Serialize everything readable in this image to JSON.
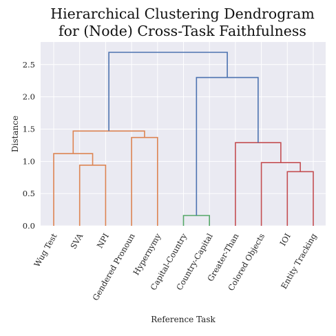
{
  "chart_data": {
    "type": "dendrogram",
    "title_lines": [
      "Hierarchical Clustering Dendrogram",
      "for (Node) Cross-Task Faithfulness"
    ],
    "xlabel": "Reference Task",
    "ylabel": "Distance",
    "ylim": [
      0,
      2.85
    ],
    "yticks": [
      "0.0",
      "0.5",
      "1.0",
      "1.5",
      "2.0",
      "2.5"
    ],
    "grid": true,
    "leaves": [
      {
        "label": "Wug Test",
        "color": "#0000ff"
      },
      {
        "label": "SVA",
        "color": "#0000ff"
      },
      {
        "label": "NPI",
        "color": "#0000ff"
      },
      {
        "label": "Gendered Pronoun",
        "color": "#0000ff"
      },
      {
        "label": "Hypernymy",
        "color": "#0000ff"
      },
      {
        "label": "Capital-Country",
        "color": "#111111"
      },
      {
        "label": "Country-Capital",
        "color": "#111111"
      },
      {
        "label": "Greater-Than",
        "color": "#111111"
      },
      {
        "label": "Colored Objects",
        "color": "#111111"
      },
      {
        "label": "IOI",
        "color": "#111111"
      },
      {
        "label": "Entity Tracking",
        "color": "#111111"
      }
    ],
    "merges": [
      {
        "left": 1,
        "right": 2,
        "distance": 0.94,
        "color": "#dd8452"
      },
      {
        "left": 0,
        "right": 11,
        "distance": 1.12,
        "color": "#dd8452"
      },
      {
        "left": 3,
        "right": 4,
        "distance": 1.37,
        "color": "#dd8452"
      },
      {
        "left": 12,
        "right": 13,
        "distance": 1.47,
        "color": "#dd8452"
      },
      {
        "left": 5,
        "right": 6,
        "distance": 0.16,
        "color": "#55a868"
      },
      {
        "left": 9,
        "right": 10,
        "distance": 0.84,
        "color": "#c44e52"
      },
      {
        "left": 8,
        "right": 16,
        "distance": 0.98,
        "color": "#c44e52"
      },
      {
        "left": 7,
        "right": 17,
        "distance": 1.29,
        "color": "#c44e52"
      },
      {
        "left": 15,
        "right": 18,
        "distance": 2.3,
        "color": "#4c72b0"
      },
      {
        "left": 14,
        "right": 19,
        "distance": 2.69,
        "color": "#4c72b0"
      }
    ]
  }
}
